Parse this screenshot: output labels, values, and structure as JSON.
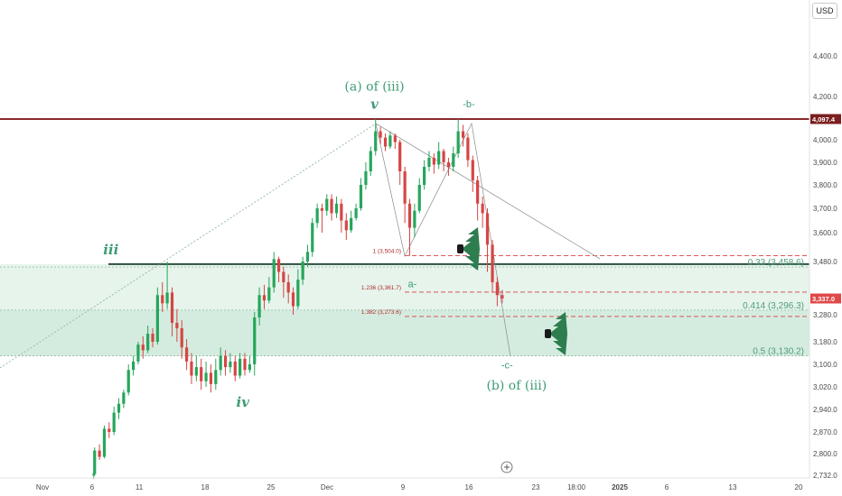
{
  "currency_button": "USD",
  "chart_data": {
    "type": "candlestick",
    "currency": "USD",
    "price_range": [
      2700,
      4560
    ],
    "date_range": [
      "2024-10-27",
      "2025-01-21"
    ],
    "y_ticks": [
      {
        "value": 4400,
        "label": "4,400.0"
      },
      {
        "value": 4200,
        "label": "4,200.0"
      },
      {
        "value": 4000,
        "label": "4,000.0"
      },
      {
        "value": 3900,
        "label": "3,900.0"
      },
      {
        "value": 3800,
        "label": "3,800.0"
      },
      {
        "value": 3700,
        "label": "3,700.0"
      },
      {
        "value": 3600,
        "label": "3,600.0"
      },
      {
        "value": 3480,
        "label": "3,480.0"
      },
      {
        "value": 3280,
        "label": "3,280.0"
      },
      {
        "value": 3180,
        "label": "3,180.0"
      },
      {
        "value": 3100,
        "label": "3,100.0"
      },
      {
        "value": 3020,
        "label": "3,020.0"
      },
      {
        "value": 2940,
        "label": "2,940.0"
      },
      {
        "value": 2870,
        "label": "2,870.0"
      },
      {
        "value": 2800,
        "label": "2,800.0"
      },
      {
        "value": 2732,
        "label": "2,732.0"
      }
    ],
    "x_ticks": [
      {
        "date": "2024-10-28",
        "label": "Nov"
      },
      {
        "date": "2024-11-06",
        "label": "6"
      },
      {
        "date": "2024-11-11",
        "label": "11"
      },
      {
        "date": "2024-11-18",
        "label": "18"
      },
      {
        "date": "2024-11-25",
        "label": "25"
      },
      {
        "date": "2024-12-01",
        "label": "Dec"
      },
      {
        "date": "2024-12-09",
        "label": "9"
      },
      {
        "date": "2024-12-16",
        "label": "16"
      },
      {
        "date": "2024-12-23",
        "label": "23"
      },
      {
        "date": "2024-12-27",
        "label": "18:00"
      },
      {
        "date": "2025-01-01",
        "label": "2025"
      },
      {
        "date": "2025-01-06",
        "label": "6"
      },
      {
        "date": "2025-01-13",
        "label": "13"
      },
      {
        "date": "2025-01-20",
        "label": "20"
      }
    ],
    "price_tags": [
      {
        "value": 4097.4,
        "label": "4,097.4",
        "color": "#7b1f1f"
      },
      {
        "value": 3337.0,
        "label": "3,337.0",
        "color": "#e04848"
      }
    ],
    "horizontal_levels": [
      {
        "value": 4097.4,
        "color": "#8b2a2a",
        "style": "solid"
      },
      {
        "value": 3470,
        "color": "#2f4f3f",
        "style": "solid"
      }
    ],
    "fib_retracement": [
      {
        "level": "0.33 (3,458.6)",
        "value": 3458.6
      },
      {
        "level": "0.414 (3,296.3)",
        "value": 3296.3
      },
      {
        "level": "0.5 (3,130.2)",
        "value": 3130.2
      }
    ],
    "fib_extension": [
      {
        "level": "1 (3,504.0)",
        "value": 3504.0
      },
      {
        "level": "1.236 (3,361.7)",
        "value": 3361.7
      },
      {
        "level": "1.382 (3,273.6)",
        "value": 3273.6
      }
    ],
    "wave_labels": [
      {
        "text": "(a) of (iii)",
        "date": "2024-12-06",
        "value": 4230
      },
      {
        "text": "v",
        "date": "2024-12-06",
        "value": 4145
      },
      {
        "text": "-b-",
        "date": "2024-12-16",
        "value": 4150
      },
      {
        "text": "iii",
        "date": "2024-11-08",
        "value": 3510
      },
      {
        "text": "iv",
        "date": "2024-11-22",
        "value": 2950
      },
      {
        "text": "a-",
        "date": "2024-12-10",
        "value": 3380
      },
      {
        "text": "-c-",
        "date": "2024-12-20",
        "value": 3085
      },
      {
        "text": "(b) of (iii)",
        "date": "2024-12-21",
        "value": 3010
      }
    ],
    "zones": [
      {
        "from": 3470,
        "to": 3296
      },
      {
        "from": 3296,
        "to": 3130
      }
    ],
    "candles": [
      [
        2732,
        2736,
        2720,
        2740
      ],
      [
        2736,
        2810,
        2730,
        2820
      ],
      [
        2810,
        2790,
        2780,
        2830
      ],
      [
        2790,
        2880,
        2785,
        2890
      ],
      [
        2880,
        2870,
        2850,
        2900
      ],
      [
        2870,
        2930,
        2860,
        2950
      ],
      [
        2930,
        2960,
        2910,
        2980
      ],
      [
        2960,
        3000,
        2945,
        3010
      ],
      [
        3000,
        3080,
        2990,
        3100
      ],
      [
        3080,
        3110,
        3060,
        3130
      ],
      [
        3110,
        3170,
        3100,
        3180
      ],
      [
        3170,
        3150,
        3120,
        3200
      ],
      [
        3150,
        3210,
        3140,
        3240
      ],
      [
        3210,
        3180,
        3160,
        3230
      ],
      [
        3180,
        3350,
        3170,
        3380
      ],
      [
        3350,
        3320,
        3290,
        3400
      ],
      [
        3320,
        3360,
        3300,
        3480
      ],
      [
        3360,
        3250,
        3200,
        3380
      ],
      [
        3250,
        3230,
        3180,
        3300
      ],
      [
        3230,
        3160,
        3120,
        3260
      ],
      [
        3160,
        3110,
        3080,
        3190
      ],
      [
        3110,
        3060,
        3030,
        3140
      ],
      [
        3060,
        3090,
        3040,
        3130
      ],
      [
        3090,
        3040,
        3010,
        3120
      ],
      [
        3040,
        3070,
        3020,
        3110
      ],
      [
        3070,
        3030,
        3000,
        3100
      ],
      [
        3030,
        3080,
        3010,
        3120
      ],
      [
        3080,
        3130,
        3060,
        3160
      ],
      [
        3130,
        3090,
        3060,
        3150
      ],
      [
        3090,
        3110,
        3070,
        3140
      ],
      [
        3110,
        3060,
        3040,
        3130
      ],
      [
        3060,
        3120,
        3050,
        3140
      ],
      [
        3120,
        3080,
        3060,
        3140
      ],
      [
        3080,
        3100,
        3070,
        3130
      ],
      [
        3100,
        3270,
        3060,
        3290
      ],
      [
        3270,
        3350,
        3240,
        3380
      ],
      [
        3350,
        3330,
        3300,
        3390
      ],
      [
        3330,
        3380,
        3320,
        3420
      ],
      [
        3380,
        3490,
        3360,
        3520
      ],
      [
        3490,
        3440,
        3400,
        3500
      ],
      [
        3440,
        3400,
        3340,
        3460
      ],
      [
        3400,
        3360,
        3320,
        3430
      ],
      [
        3360,
        3310,
        3280,
        3380
      ],
      [
        3310,
        3410,
        3300,
        3450
      ],
      [
        3410,
        3480,
        3390,
        3500
      ],
      [
        3480,
        3520,
        3460,
        3550
      ],
      [
        3520,
        3640,
        3500,
        3660
      ],
      [
        3640,
        3700,
        3620,
        3720
      ],
      [
        3700,
        3690,
        3600,
        3720
      ],
      [
        3690,
        3740,
        3670,
        3760
      ],
      [
        3740,
        3680,
        3650,
        3760
      ],
      [
        3680,
        3720,
        3660,
        3750
      ],
      [
        3720,
        3650,
        3600,
        3740
      ],
      [
        3650,
        3610,
        3570,
        3680
      ],
      [
        3610,
        3660,
        3600,
        3690
      ],
      [
        3660,
        3700,
        3650,
        3720
      ],
      [
        3700,
        3800,
        3690,
        3830
      ],
      [
        3800,
        3860,
        3780,
        3900
      ],
      [
        3860,
        3950,
        3840,
        3970
      ],
      [
        3950,
        4040,
        3930,
        4097
      ],
      [
        4040,
        4010,
        3980,
        4060
      ],
      [
        4010,
        3970,
        3950,
        4030
      ],
      [
        3970,
        4020,
        3960,
        4040
      ],
      [
        4020,
        3990,
        3960,
        4030
      ],
      [
        3990,
        3860,
        3800,
        4000
      ],
      [
        3860,
        3720,
        3640,
        3880
      ],
      [
        3720,
        3620,
        3504,
        3740
      ],
      [
        3620,
        3690,
        3580,
        3720
      ],
      [
        3690,
        3800,
        3680,
        3830
      ],
      [
        3800,
        3880,
        3780,
        3910
      ],
      [
        3880,
        3920,
        3860,
        3950
      ],
      [
        3920,
        3890,
        3850,
        3940
      ],
      [
        3890,
        3950,
        3870,
        3990
      ],
      [
        3950,
        3900,
        3860,
        3960
      ],
      [
        3900,
        3880,
        3840,
        3920
      ],
      [
        3880,
        3940,
        3860,
        3970
      ],
      [
        3940,
        4040,
        3920,
        4097
      ],
      [
        4040,
        4010,
        3970,
        4070
      ],
      [
        4010,
        3910,
        3880,
        4030
      ],
      [
        3910,
        3820,
        3770,
        3930
      ],
      [
        3820,
        3720,
        3650,
        3840
      ],
      [
        3720,
        3680,
        3620,
        3750
      ],
      [
        3680,
        3550,
        3440,
        3700
      ],
      [
        3550,
        3400,
        3360,
        3570
      ],
      [
        3400,
        3350,
        3310,
        3420
      ],
      [
        3350,
        3337,
        3320,
        3370
      ]
    ]
  }
}
